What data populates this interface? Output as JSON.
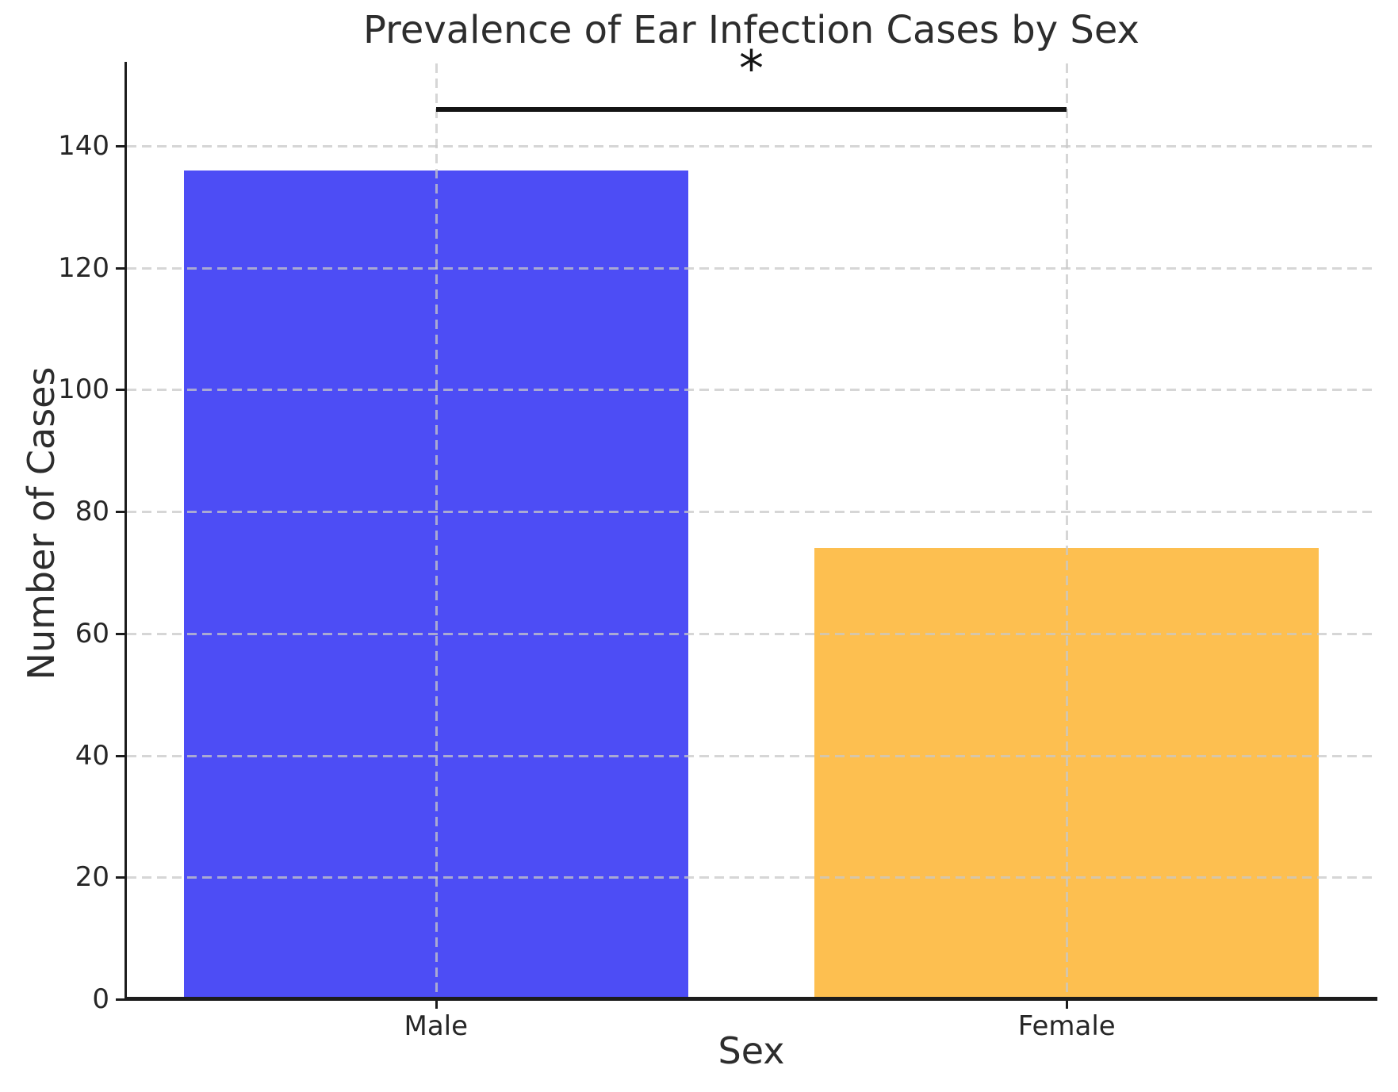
{
  "chart_data": {
    "type": "bar",
    "title": "Prevalence of Ear Infection Cases by Sex",
    "xlabel": "Sex",
    "ylabel": "Number of Cases",
    "categories": [
      "Male",
      "Female"
    ],
    "values": [
      136,
      74
    ],
    "bar_colors": [
      "#4D4DF5",
      "#FDBF50"
    ],
    "bar_width": 0.8,
    "yticks": [
      0,
      20,
      40,
      60,
      80,
      100,
      120,
      140
    ],
    "ylim": [
      0,
      153.5
    ],
    "xlim": [
      -0.49,
      1.49
    ],
    "grid": true,
    "grid_linestyle": "dashed",
    "grid_color": "#c8c8c8",
    "spine_color": "#1c1c1c",
    "text_color": "#2d2d2d",
    "legend": "none",
    "annotation": {
      "text": "*",
      "between": [
        "Male",
        "Female"
      ],
      "line_y": 146
    }
  }
}
